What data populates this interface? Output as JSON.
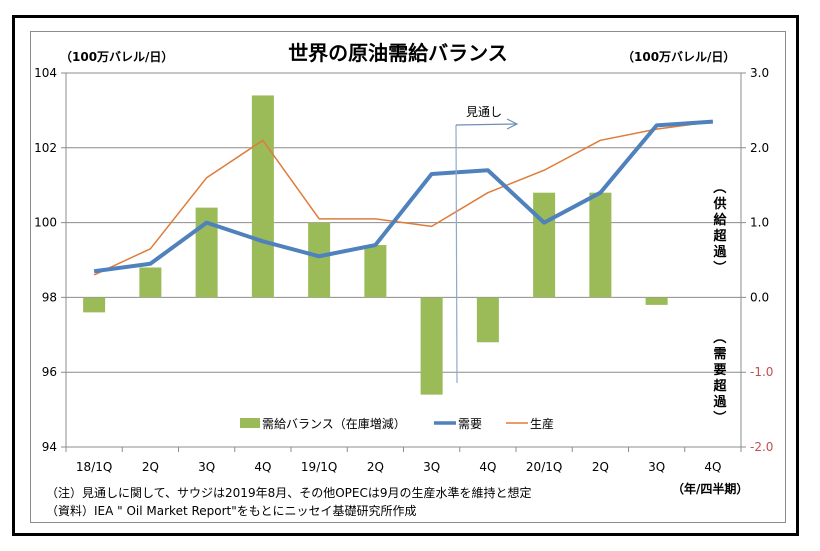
{
  "chart_data": {
    "type": "bar+line",
    "title": "世界の原油需給バランス",
    "ylabel_left": "（100万バレル/日）",
    "ylabel_right": "（100万バレル/日）",
    "xlabel": "（年/四半期）",
    "categories": [
      "18/1Q",
      "2Q",
      "3Q",
      "4Q",
      "19/1Q",
      "2Q",
      "3Q",
      "4Q",
      "20/1Q",
      "2Q",
      "3Q",
      "4Q"
    ],
    "ylim_left": [
      94,
      104
    ],
    "yticks_left": [
      "104",
      "102",
      "100",
      "98",
      "96",
      "94"
    ],
    "ylim_right": [
      -2.0,
      3.0
    ],
    "yticks_right": [
      "3.0",
      "2.0",
      "1.0",
      "0.0",
      "-1.0",
      "-2.0"
    ],
    "right_axis_annotations": {
      "positive": "（供給超過）",
      "negative": "（需要超過）"
    },
    "grid": true,
    "legend_position": "bottom-center",
    "series": [
      {
        "name": "需給バランス（在庫増減）",
        "type": "bar",
        "axis": "right",
        "color": "#9BBB59",
        "values": [
          -0.2,
          0.4,
          1.2,
          2.7,
          1.0,
          0.7,
          -1.3,
          -0.6,
          1.4,
          1.4,
          -0.1,
          0.0
        ]
      },
      {
        "name": "需要",
        "type": "line",
        "axis": "left",
        "color": "#4F81BD",
        "values": [
          98.7,
          98.9,
          100.0,
          99.5,
          99.1,
          99.4,
          101.3,
          101.4,
          100.0,
          100.8,
          102.6,
          102.7
        ]
      },
      {
        "name": "生産",
        "type": "line",
        "axis": "left",
        "color": "#E07B39",
        "values": [
          98.6,
          99.3,
          101.2,
          102.2,
          100.1,
          100.1,
          99.9,
          100.8,
          101.4,
          102.2,
          102.5,
          102.7
        ]
      }
    ],
    "annotations": [
      {
        "text": "見通し",
        "type": "arrow-right",
        "from_category_between": [
          "3Q",
          "4Q"
        ]
      }
    ]
  },
  "notes": {
    "note": "（注）見通しに関して、サウジは2019年8月、その他OPECは9月の生産水準を維持と想定",
    "source": "（資料）IEA \" Oil Market Report\"をもとにニッセイ基礎研究所作成"
  },
  "colors": {
    "negative_tick": "#C0504D",
    "grid": "#8c8c8c",
    "arrow": "#6d8fb5"
  }
}
